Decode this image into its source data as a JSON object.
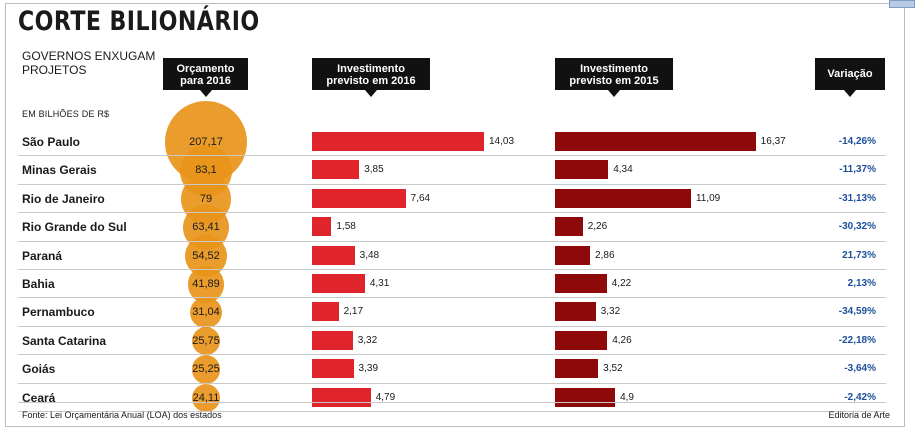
{
  "title": "CORTE BILIONÁRIO",
  "subtitle": "GOVERNOS ENXUGAM PROJETOS",
  "unit": "EM BILHÕES DE R$",
  "headers": {
    "budget": "Orçamento para 2016",
    "inv2016": "Investimento previsto em 2016",
    "inv2015": "Investimento previsto em 2015",
    "variation": "Variação"
  },
  "footer": {
    "source": "Fonte: Lei Orçamentária Anual (LOA) dos estados",
    "credit": "Editoria de Arte"
  },
  "colors": {
    "bubble": "#e8941a",
    "bar2016": "#e0242b",
    "bar2015": "#8e0a0a",
    "variation_text": "#1b4f9c"
  },
  "chart_data": {
    "type": "bar",
    "categories": [
      "São Paulo",
      "Minas Gerais",
      "Rio de Janeiro",
      "Rio Grande do Sul",
      "Paraná",
      "Bahia",
      "Pernambuco",
      "Santa Catarina",
      "Goiás",
      "Ceará"
    ],
    "series": [
      {
        "name": "Orçamento para 2016",
        "values": [
          207.17,
          83.1,
          79,
          63.41,
          54.52,
          41.89,
          31.04,
          25.75,
          25.25,
          24.11
        ],
        "labels": [
          "207,17",
          "83,1",
          "79",
          "63,41",
          "54,52",
          "41,89",
          "31,04",
          "25,75",
          "25,25",
          "24,11"
        ]
      },
      {
        "name": "Investimento previsto em 2016",
        "values": [
          14.03,
          3.85,
          7.64,
          1.58,
          3.48,
          4.31,
          2.17,
          3.32,
          3.39,
          4.79
        ],
        "labels": [
          "14,03",
          "3,85",
          "7,64",
          "1,58",
          "3,48",
          "4,31",
          "2,17",
          "3,32",
          "3,39",
          "4,79"
        ]
      },
      {
        "name": "Investimento previsto em 2015",
        "values": [
          16.37,
          4.34,
          11.09,
          2.26,
          2.86,
          4.22,
          3.32,
          4.26,
          3.52,
          4.9
        ],
        "labels": [
          "16,37",
          "4,34",
          "11,09",
          "2,26",
          "2,86",
          "4,22",
          "3,32",
          "4,26",
          "3,52",
          "4,9"
        ]
      },
      {
        "name": "Variação",
        "values": [
          -14.26,
          -11.37,
          -31.13,
          -30.32,
          21.73,
          2.13,
          -34.59,
          -22.18,
          -3.64,
          -2.42
        ],
        "labels": [
          "-14,26%",
          "-11,37%",
          "-31,13%",
          "-30,32%",
          "21,73%",
          "2,13%",
          "-34,59%",
          "-22,18%",
          "-3,64%",
          "-2,42%"
        ]
      }
    ]
  }
}
